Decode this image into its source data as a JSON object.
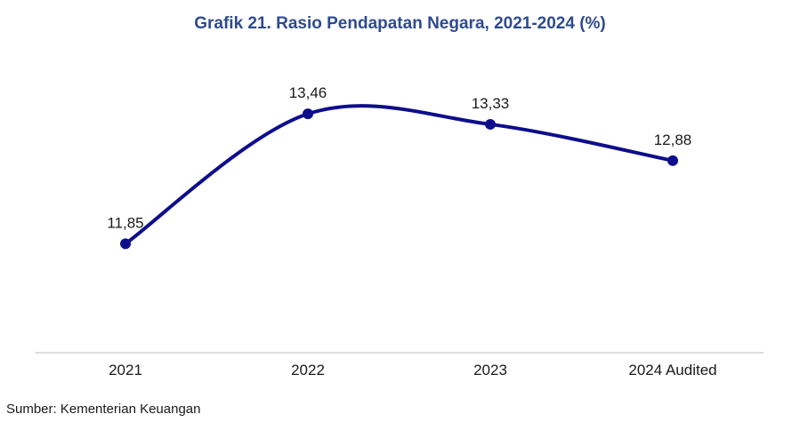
{
  "chart_data": {
    "type": "line",
    "title": "Grafik 21. Rasio Pendapatan Negara, 2021-2024 (%)",
    "categories": [
      "2021",
      "2022",
      "2023",
      "2024 Audited"
    ],
    "series": [
      {
        "values": [
          11.85,
          13.46,
          13.33,
          12.88
        ],
        "labels": [
          "11,85",
          "13,46",
          "13,33",
          "12,88"
        ],
        "color": "#0d0d8c"
      }
    ],
    "ylim": [
      10.5,
      14.1
    ],
    "smooth": true,
    "grid": false,
    "legend": "none"
  },
  "source": "Sumber: Kementerian Keuangan",
  "colors": {
    "title": "#2e4b8e",
    "line": "#0d0d8c",
    "axis": "#d0d0d0"
  }
}
